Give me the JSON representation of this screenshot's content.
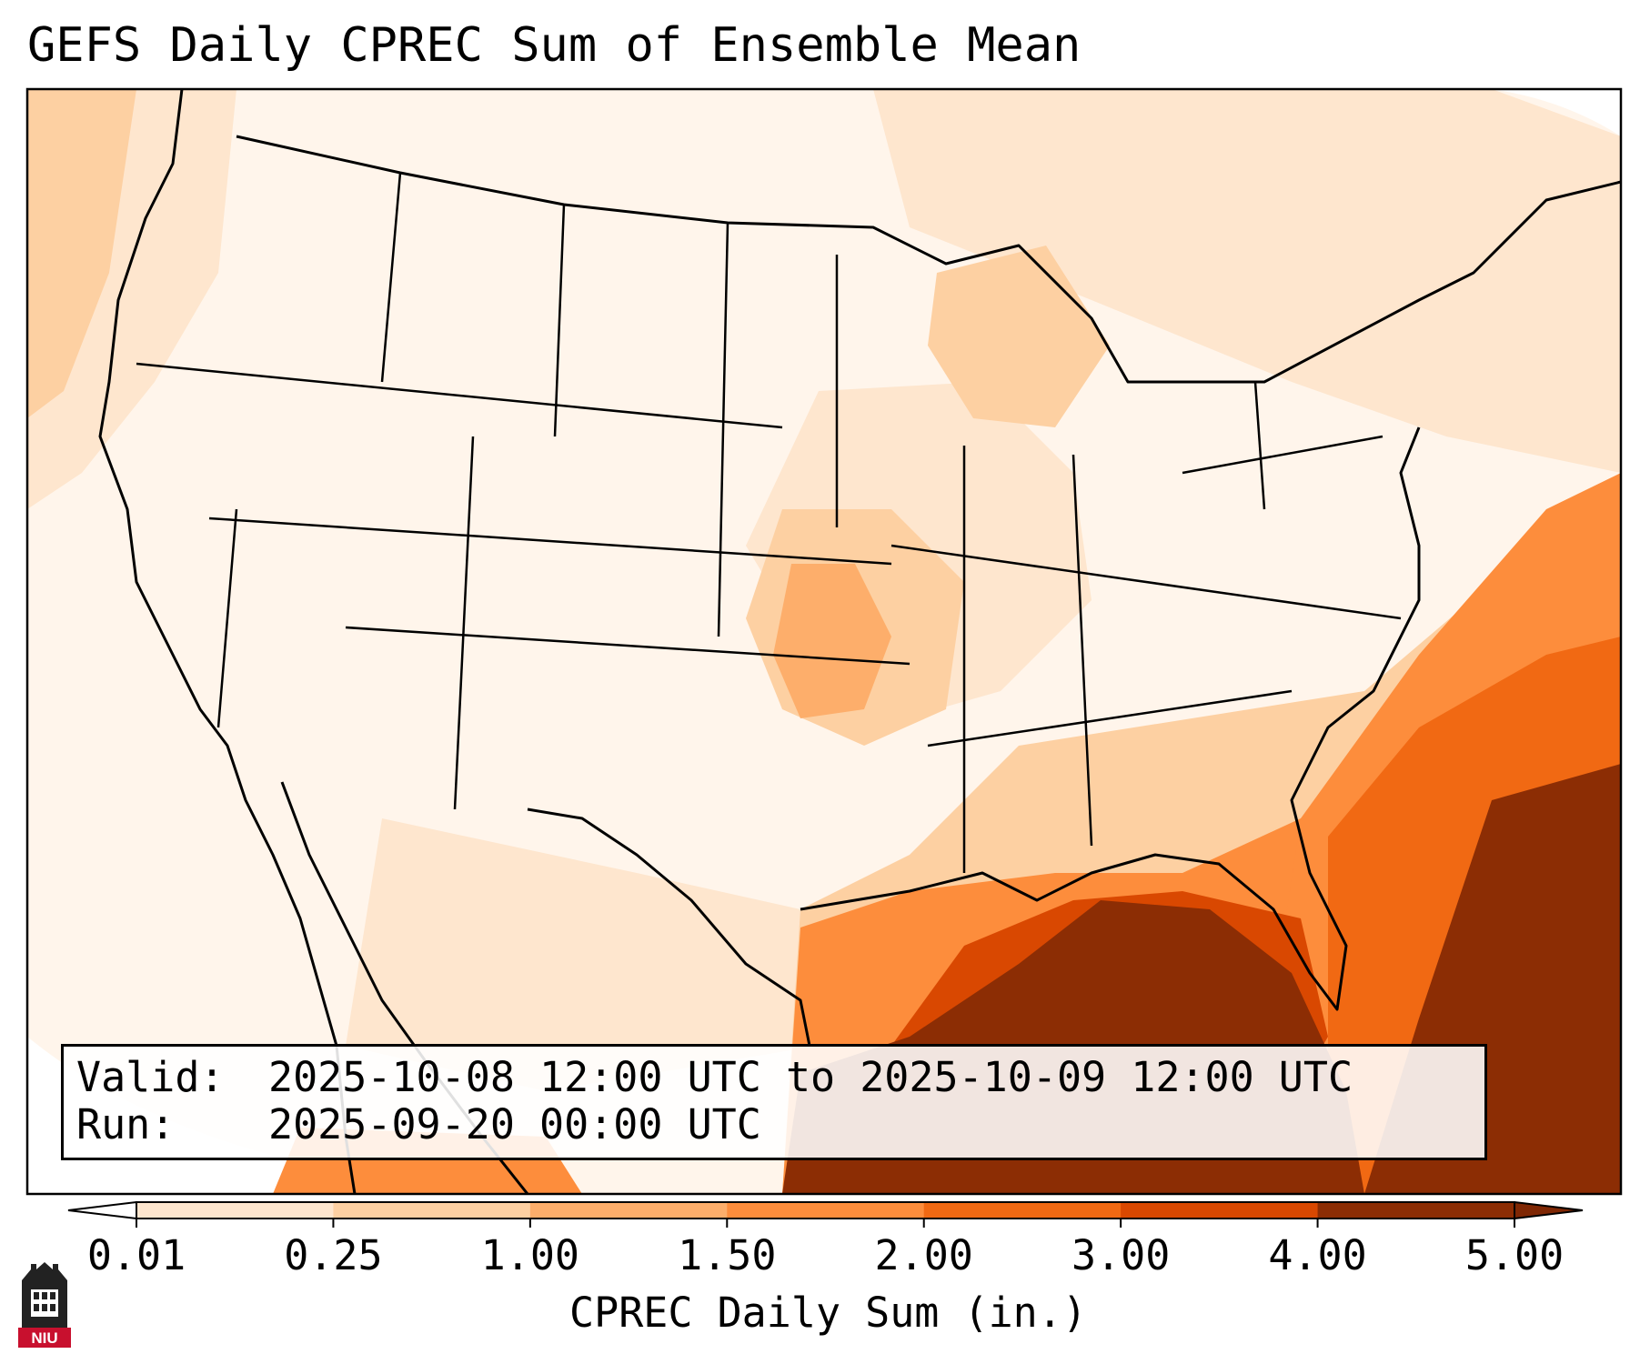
{
  "title": "GEFS Daily CPREC Sum of Ensemble Mean",
  "info": {
    "valid_label": "Valid:",
    "valid_value": "2025-10-08 12:00 UTC to 2025-10-09 12:00 UTC",
    "run_label": "Run:",
    "run_value": "2025-09-20 00:00 UTC"
  },
  "colorbar": {
    "label": "CPREC Daily Sum (in.)",
    "ticks": [
      "0.01",
      "0.25",
      "1.00",
      "1.50",
      "2.00",
      "3.00",
      "4.00",
      "5.00"
    ],
    "colors": [
      "#fff5eb",
      "#fee6ce",
      "#fdd0a2",
      "#fdae6b",
      "#fd8d3c",
      "#f16913",
      "#d94801",
      "#8c2d04"
    ],
    "under_color": "#ffffff",
    "over_color": "#7f2704"
  },
  "logo": {
    "text": "NIU",
    "icon": "niu-castle-icon"
  }
}
